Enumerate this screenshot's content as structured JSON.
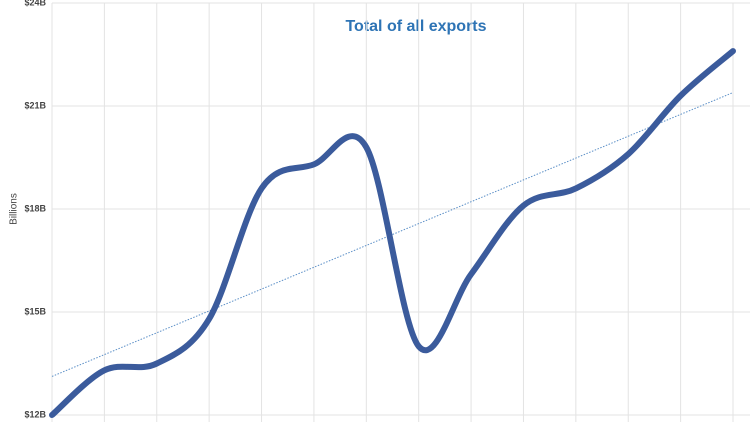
{
  "chart_data": {
    "type": "line",
    "title": "Total of all exports",
    "ylabel": "Billions",
    "categories": [
      null,
      null,
      null,
      null,
      null,
      null,
      null,
      null,
      null,
      null,
      null,
      null,
      null,
      null
    ],
    "series": [
      {
        "name": null,
        "color": "#3b5b9c",
        "values": [
          12.0,
          13.3,
          13.5,
          14.8,
          18.6,
          19.3,
          19.8,
          14.0,
          16.1,
          18.1,
          18.6,
          19.6,
          21.3,
          22.6
        ]
      }
    ],
    "trendline": true,
    "trendline_color": "#5b8fc7",
    "ylim": [
      12,
      24
    ],
    "yticks": [
      {
        "value": 12,
        "label": "$12B"
      },
      {
        "value": 15,
        "label": "$15B"
      },
      {
        "value": 18,
        "label": "$18B"
      },
      {
        "value": 21,
        "label": "$21B"
      },
      {
        "value": 24,
        "label": "$24B"
      }
    ],
    "grid": true
  }
}
